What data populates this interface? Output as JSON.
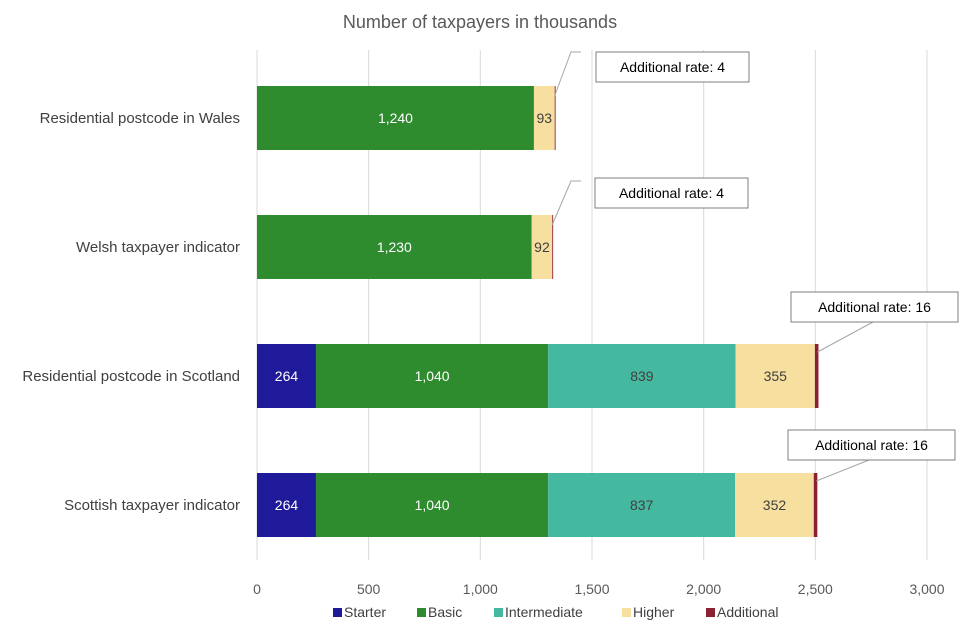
{
  "chart_data": {
    "type": "bar",
    "orientation": "horizontal",
    "stacked": true,
    "title": "Number of taxpayers in thousands",
    "categories": [
      "Residential postcode in Wales",
      "Welsh taxpayer indicator",
      "Residential postcode in Scotland",
      "Scottish taxpayer indicator"
    ],
    "series": [
      {
        "name": "Starter",
        "color": "#1f1a99",
        "label_color": "#ffffff",
        "values": [
          null,
          null,
          264,
          264
        ]
      },
      {
        "name": "Basic",
        "color": "#2e8b2e",
        "label_color": "#ffffff",
        "values": [
          1240,
          1230,
          1040,
          1040
        ]
      },
      {
        "name": "Intermediate",
        "color": "#45b8a0",
        "label_color": "#404040",
        "values": [
          null,
          null,
          839,
          837
        ]
      },
      {
        "name": "Higher",
        "color": "#f7dfa0",
        "label_color": "#404040",
        "values": [
          93,
          92,
          355,
          352
        ]
      },
      {
        "name": "Additional",
        "color": "#8b2232",
        "label_color": "#404040",
        "values": [
          4,
          4,
          16,
          16
        ]
      }
    ],
    "data_labels": [
      [
        null,
        "1,240",
        null,
        "93",
        null
      ],
      [
        null,
        "1,230",
        null,
        "92",
        null
      ],
      [
        "264",
        "1,040",
        "839",
        "355",
        null
      ],
      [
        "264",
        "1,040",
        "837",
        "352",
        null
      ]
    ],
    "callouts": [
      "Additional rate: 4",
      "Additional rate: 4",
      "Additional rate: 16",
      "Additional rate: 16"
    ],
    "x_ticks": [
      0,
      500,
      1000,
      1500,
      2000,
      2500,
      3000
    ],
    "x_tick_labels": [
      "0",
      "500",
      "1,000",
      "1,500",
      "2,000",
      "2,500",
      "3,000"
    ],
    "xlim": [
      0,
      3000
    ],
    "grid": true,
    "legend_position": "bottom",
    "xlabel": "",
    "ylabel": ""
  }
}
